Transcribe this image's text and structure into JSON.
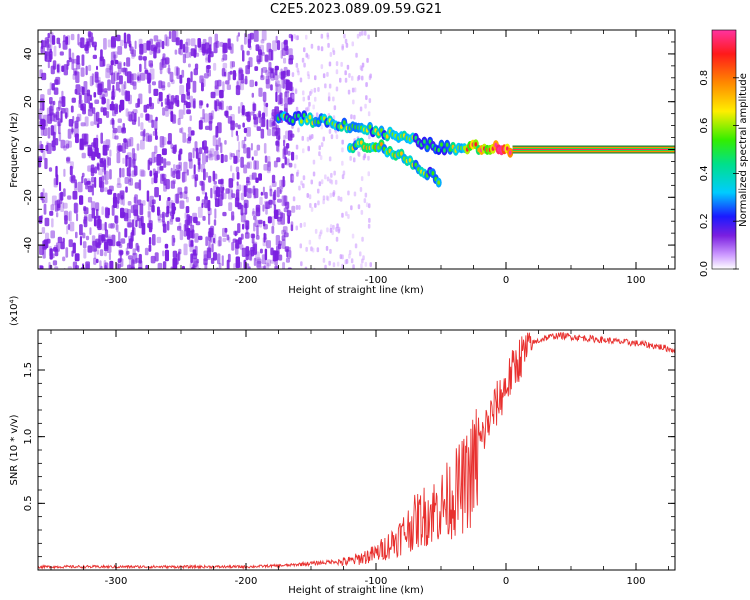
{
  "title": "C2E5.2023.089.09.59.G21",
  "colors": {
    "snr_line": "#e8302e",
    "spectrogram_noise": "#7a1fe0",
    "colorbar": [
      "#ffffff",
      "#cc99ff",
      "#7a1fe0",
      "#1a1aff",
      "#00ccff",
      "#00e08a",
      "#33ee00",
      "#ffee00",
      "#ff8800",
      "#ff1a1a",
      "#ff33a0"
    ]
  },
  "chart_data": [
    {
      "type": "heatmap",
      "title": "C2E5.2023.089.09.59.G21",
      "xlabel": "Height of straight line (km)",
      "ylabel": "Frequency (Hz)",
      "xlim": [
        -360,
        130
      ],
      "ylim": [
        -50,
        50
      ],
      "x_ticks": [
        -300,
        -200,
        -100,
        0,
        100
      ],
      "y_ticks": [
        -40,
        -20,
        0,
        20,
        40
      ],
      "colorbar": {
        "label": "Normalized spectral amplitude",
        "range": [
          0.0,
          1.0
        ],
        "ticks": [
          "0.0",
          "0.2",
          "0.4",
          "0.6",
          "0.8"
        ]
      },
      "features": [
        {
          "name": "main-line",
          "x": [
            -175,
            -140,
            -110,
            -80,
            -60,
            -40,
            -20,
            0,
            130
          ],
          "y": [
            14,
            12,
            9,
            5,
            2,
            0,
            1,
            0,
            0
          ],
          "amplitude": [
            0.35,
            0.45,
            0.4,
            0.45,
            0.3,
            0.45,
            0.75,
            0.9,
            1.0
          ]
        },
        {
          "name": "secondary-branch",
          "x": [
            -120,
            -100,
            -80,
            -65,
            -50
          ],
          "y": [
            2,
            2,
            -3,
            -8,
            -13
          ],
          "amplitude": [
            0.4,
            0.5,
            0.45,
            0.4,
            0.35
          ]
        }
      ]
    },
    {
      "type": "line",
      "xlabel": "Height of straight line (km)",
      "ylabel": "SNR (10 * v/v)",
      "y_multiplier": "(x10⁴)",
      "xlim": [
        -360,
        130
      ],
      "ylim": [
        0,
        1.8
      ],
      "x_ticks": [
        -300,
        -200,
        -100,
        0,
        100
      ],
      "y_ticks": [
        0.5,
        1.0,
        1.5
      ],
      "series": [
        {
          "x": [
            -360,
            -320,
            -280,
            -240,
            -200,
            -170,
            -140,
            -120,
            -110,
            -100,
            -90,
            -80,
            -70,
            -60,
            -50,
            -40,
            -30,
            -25,
            -20,
            -15,
            -10,
            -5,
            0,
            10,
            20,
            30,
            40,
            50,
            60,
            80,
            100,
            115,
            130
          ],
          "y": [
            0.02,
            0.02,
            0.02,
            0.02,
            0.02,
            0.03,
            0.05,
            0.07,
            0.1,
            0.13,
            0.2,
            0.28,
            0.38,
            0.45,
            0.5,
            0.6,
            0.7,
            0.8,
            0.95,
            1.1,
            1.2,
            1.3,
            1.4,
            1.6,
            1.7,
            1.74,
            1.76,
            1.75,
            1.74,
            1.72,
            1.7,
            1.68,
            1.65
          ]
        }
      ]
    }
  ]
}
